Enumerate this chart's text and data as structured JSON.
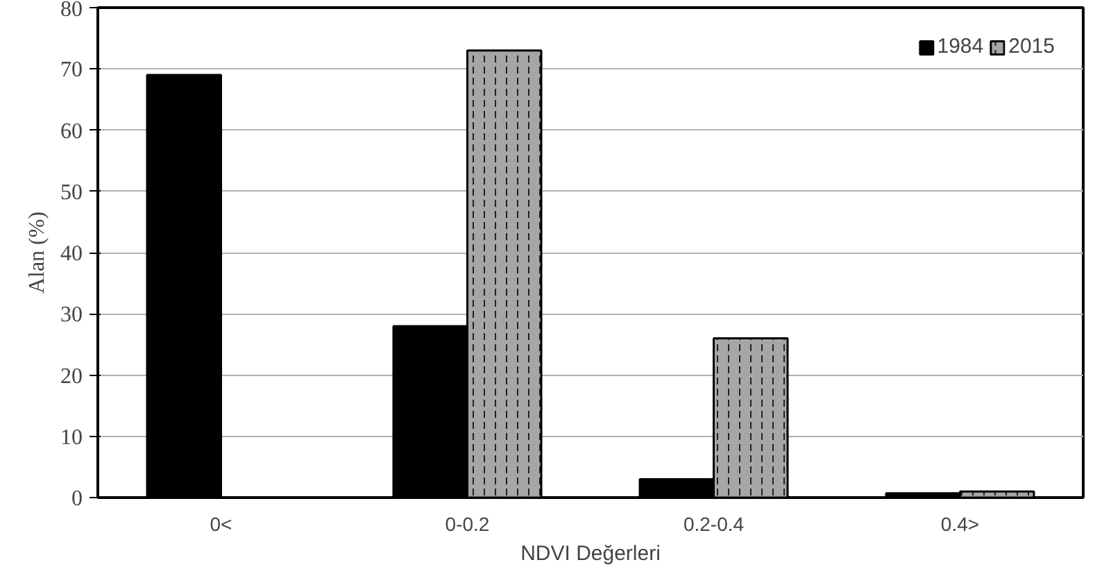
{
  "chart_data": {
    "type": "bar",
    "xlabel": "NDVI Değerleri",
    "ylabel": "Alan (%)",
    "categories": [
      "0<",
      "0-0.2",
      "0.2-0.4",
      "0.4>"
    ],
    "series": [
      {
        "name": "1984",
        "color": "#000000",
        "values": [
          69,
          28,
          3,
          0.7
        ]
      },
      {
        "name": "2015",
        "color": "#a6a6a6",
        "values": [
          null,
          73,
          26,
          1
        ]
      }
    ],
    "ylim": [
      0,
      80
    ],
    "yticks": [
      0,
      10,
      20,
      30,
      40,
      50,
      60,
      70,
      80
    ],
    "grid": "y",
    "legend": "top right"
  }
}
